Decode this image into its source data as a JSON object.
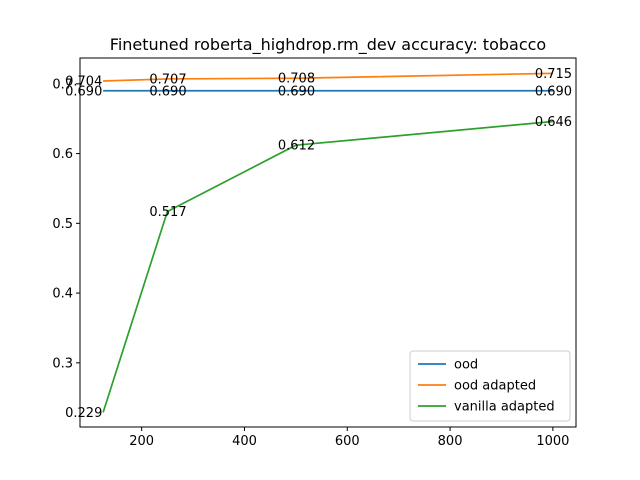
{
  "chart_data": {
    "type": "line",
    "title": "Finetuned roberta_highdrop.rm_dev accuracy: tobacco",
    "xlabel": "",
    "ylabel": "",
    "x": [
      125,
      250,
      500,
      1000
    ],
    "xlim": [
      80,
      1045
    ],
    "ylim": [
      0.208,
      0.737
    ],
    "xticks": [
      200,
      400,
      600,
      800,
      1000
    ],
    "yticks": [
      0.3,
      0.4,
      0.5,
      0.6,
      0.7
    ],
    "grid": false,
    "legend_position": "lower right",
    "series": [
      {
        "name": "ood",
        "color": "#1f77b4",
        "values": [
          0.69,
          0.69,
          0.69,
          0.69
        ],
        "labels": [
          "0.690",
          "0.690",
          "0.690",
          "0.690"
        ]
      },
      {
        "name": "ood adapted",
        "color": "#ff7f0e",
        "values": [
          0.704,
          0.707,
          0.708,
          0.715
        ],
        "labels": [
          "0.704",
          "0.707",
          "0.708",
          "0.715"
        ]
      },
      {
        "name": "vanilla adapted",
        "color": "#2ca02c",
        "values": [
          0.229,
          0.517,
          0.612,
          0.646
        ],
        "labels": [
          "0.229",
          "0.517",
          "0.612",
          "0.646"
        ]
      }
    ]
  }
}
